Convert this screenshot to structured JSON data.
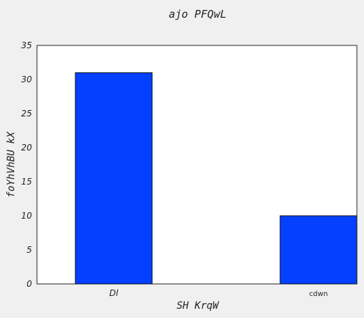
{
  "chart_data": {
    "type": "bar",
    "title": "ajo PFQwL",
    "xlabel": "SH  KrqW",
    "ylabel": "foYhVhBU kX",
    "categories": [
      "Dl",
      "cdwn"
    ],
    "values": [
      31,
      10
    ],
    "ylim": [
      0,
      35
    ],
    "yticks": [
      0,
      5,
      10,
      15,
      20,
      25,
      30,
      35
    ],
    "grid": false,
    "colors": {
      "bar_fill": "#0340ff",
      "bar_edge": "#111111",
      "background": "#f0f0f0",
      "plot_background": "#ffffff"
    }
  }
}
